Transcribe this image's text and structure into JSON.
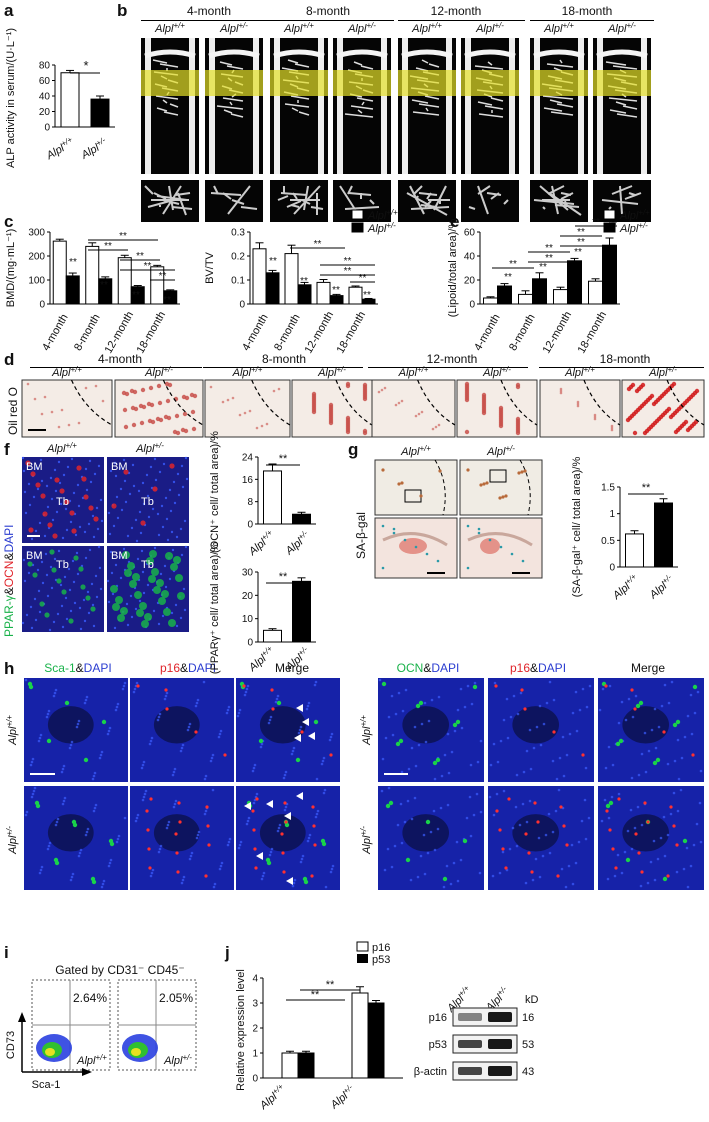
{
  "panel_labels": {
    "a": "a",
    "b": "b",
    "c": "c",
    "d": "d",
    "e": "e",
    "f": "f",
    "g": "g",
    "h": "h",
    "i": "i",
    "j": "j"
  },
  "genotypes": {
    "wt": "Alpl",
    "het": "Alpl",
    "wt_sup": "+/+",
    "het_sup": "+/-"
  },
  "ages": [
    "4-month",
    "8-month",
    "12-month",
    "18-month"
  ],
  "sig": {
    "single": "*",
    "double": "**"
  },
  "panel_a": {
    "ylabel": "ALP activity in serum/(U·L⁻¹)"
  },
  "panel_c": {
    "ylabel_bmd": "BMD/(mg·mL⁻¹)",
    "ylabel_bvtv": "BV/TV"
  },
  "panel_d": {
    "stain": "Oil red O"
  },
  "panel_e": {
    "ylabel": "(Lipoid/total area)/%"
  },
  "panel_f": {
    "stain_top_parts": [
      "PPAR-γ",
      "&",
      "OCN",
      "&",
      "DAPI"
    ],
    "bm": "BM",
    "tb": "Tb",
    "ylabel_top": "(OCN⁺ cell/ total area)/%",
    "ylabel_bottom": "(PPARγ⁺ cell/ total area)/%"
  },
  "panel_g": {
    "stain": "SA-β-gal",
    "ylabel": "(SA-β-gal⁺ cell/ total area)/%"
  },
  "panel_h": {
    "left_headers": [
      [
        "Sca-1",
        "&",
        "DAPI"
      ],
      [
        "p16",
        "&",
        "DAPI"
      ],
      [
        "Merge"
      ]
    ],
    "right_headers": [
      [
        "OCN",
        "&",
        "DAPI"
      ],
      [
        "p16",
        "&",
        "DAPI"
      ],
      [
        "Merge"
      ]
    ]
  },
  "panel_i": {
    "title": "Gated by CD31⁻ CD45⁻",
    "pct_wt": "2.64%",
    "pct_het": "2.05%",
    "xlabel": "Sca-1",
    "ylabel": "CD73"
  },
  "panel_j": {
    "ylabel": "Relative expression level",
    "legend": [
      "p16",
      "p53"
    ],
    "wb_rows": [
      "p16",
      "p53",
      "β-actin"
    ],
    "wb_kd": [
      "16",
      "53",
      "43"
    ],
    "kd_label": "kD"
  },
  "colors": {
    "wt_bar": "#ffffff",
    "het_bar": "#000000",
    "band": "#e6e128",
    "green": "#19b24a",
    "red": "#e0242b",
    "blue": "#2a3cd0"
  },
  "chart_data": [
    {
      "id": "a",
      "type": "bar",
      "categories": [
        "Alpl+/+",
        "Alpl+/-"
      ],
      "values": [
        70,
        36
      ],
      "errors": [
        3,
        4
      ],
      "ylim": [
        0,
        80
      ],
      "yticks": [
        0,
        20,
        40,
        60,
        80
      ],
      "ylabel": "ALP activity in serum/(U·L⁻¹)"
    },
    {
      "id": "c-bmd",
      "type": "bar",
      "categories": [
        "4-month",
        "8-month",
        "12-month",
        "18-month"
      ],
      "ylim": [
        0,
        300
      ],
      "yticks": [
        0,
        100,
        200,
        300
      ],
      "series": [
        {
          "name": "Alpl+/+",
          "values": [
            262,
            240,
            193,
            155
          ],
          "errors": [
            8,
            15,
            10,
            6
          ]
        },
        {
          "name": "Alpl+/-",
          "values": [
            117,
            105,
            72,
            55
          ],
          "errors": [
            12,
            8,
            5,
            4
          ]
        }
      ],
      "ylabel": "BMD/(mg·mL⁻¹)"
    },
    {
      "id": "c-bvtv",
      "type": "bar",
      "categories": [
        "4-month",
        "8-month",
        "12-month",
        "18-month"
      ],
      "ylim": [
        0,
        0.3
      ],
      "yticks": [
        0,
        0.1,
        0.2,
        0.3
      ],
      "series": [
        {
          "name": "Alpl+/+",
          "values": [
            0.23,
            0.21,
            0.09,
            0.07
          ],
          "errors": [
            0.025,
            0.035,
            0.012,
            0.005
          ]
        },
        {
          "name": "Alpl+/-",
          "values": [
            0.13,
            0.08,
            0.035,
            0.02
          ],
          "errors": [
            0.01,
            0.01,
            0.005,
            0.003
          ]
        }
      ],
      "ylabel": "BV/TV"
    },
    {
      "id": "e",
      "type": "bar",
      "categories": [
        "4-month",
        "8-month",
        "12-month",
        "18-month"
      ],
      "ylim": [
        0,
        60
      ],
      "yticks": [
        0,
        20,
        40,
        60
      ],
      "series": [
        {
          "name": "Alpl+/+",
          "values": [
            5,
            8,
            12,
            19
          ],
          "errors": [
            1,
            3,
            2,
            2
          ]
        },
        {
          "name": "Alpl+/-",
          "values": [
            15,
            21,
            36,
            49
          ],
          "errors": [
            2,
            5,
            2,
            6
          ]
        }
      ],
      "ylabel": "(Lipoid/total area)/%"
    },
    {
      "id": "f-ocn",
      "type": "bar",
      "categories": [
        "Alpl+/+",
        "Alpl+/-"
      ],
      "values": [
        19,
        3.5
      ],
      "errors": [
        2.5,
        0.7
      ],
      "ylim": [
        0,
        24
      ],
      "yticks": [
        0,
        8,
        16,
        24
      ]
    },
    {
      "id": "f-ppar",
      "type": "bar",
      "categories": [
        "Alpl+/+",
        "Alpl+/-"
      ],
      "values": [
        5,
        26
      ],
      "errors": [
        0.7,
        1.5
      ],
      "ylim": [
        0,
        30
      ],
      "yticks": [
        0,
        10,
        20,
        30
      ]
    },
    {
      "id": "g",
      "type": "bar",
      "categories": [
        "Alpl+/+",
        "Alpl+/-"
      ],
      "values": [
        0.62,
        1.2
      ],
      "errors": [
        0.06,
        0.08
      ],
      "ylim": [
        0,
        1.5
      ],
      "yticks": [
        0,
        0.5,
        1,
        1.5
      ]
    },
    {
      "id": "j",
      "type": "bar",
      "categories": [
        "Alpl+/+",
        "Alpl+/-"
      ],
      "series": [
        {
          "name": "p16",
          "values": [
            1.0,
            3.4
          ],
          "errors": [
            0.07,
            0.25
          ]
        },
        {
          "name": "p53",
          "values": [
            1.0,
            3.0
          ],
          "errors": [
            0.07,
            0.1
          ]
        }
      ],
      "ylim": [
        0,
        4
      ],
      "yticks": [
        0,
        1,
        2,
        3,
        4
      ],
      "ylabel": "Relative expression level"
    }
  ]
}
